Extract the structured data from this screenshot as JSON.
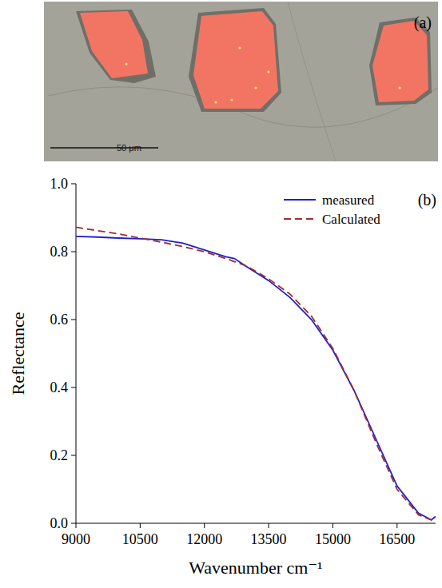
{
  "image": {
    "label": "(a)",
    "scale_bar": "50 μm"
  },
  "chart_data": {
    "type": "line",
    "annotations": [
      "(b)"
    ],
    "x_label": "Wavenumber cm⁻¹",
    "y_label": "Reflectance",
    "xlim": [
      9000,
      17400
    ],
    "ylim": [
      0,
      1
    ],
    "xticks": [
      9000,
      10500,
      12000,
      13500,
      15000,
      16500
    ],
    "yticks": [
      {
        "value": 0,
        "label": "0.0"
      },
      {
        "value": 0.2,
        "label": "0.2"
      },
      {
        "value": 0.4,
        "label": "0.4"
      },
      {
        "value": 0.6,
        "label": "0.6"
      },
      {
        "value": 0.8,
        "label": "0.8"
      },
      {
        "value": 1,
        "label": "1.0"
      }
    ],
    "legend": "upper right",
    "grid": false,
    "series": [
      {
        "name": "measured",
        "color": "#1f1fd0",
        "line_style": "solid",
        "x": [
          9000,
          9500,
          10000,
          10500,
          11000,
          11500,
          12000,
          12500,
          12700,
          13000,
          13500,
          14000,
          14500,
          15000,
          15500,
          16000,
          16500,
          17000,
          17300,
          17400
        ],
        "values": [
          0.845,
          0.843,
          0.84,
          0.838,
          0.835,
          0.825,
          0.805,
          0.785,
          0.78,
          0.755,
          0.715,
          0.665,
          0.6,
          0.51,
          0.39,
          0.25,
          0.11,
          0.03,
          0.01,
          0.02
        ]
      },
      {
        "name": "Calculated",
        "color": "#a52a2a",
        "line_style": "dashed",
        "x": [
          9000,
          9500,
          10000,
          10500,
          11000,
          11500,
          12000,
          12500,
          13000,
          13500,
          14000,
          14500,
          15000,
          15500,
          16000,
          16500,
          17000,
          17300,
          17400
        ],
        "values": [
          0.872,
          0.862,
          0.852,
          0.84,
          0.828,
          0.815,
          0.8,
          0.78,
          0.757,
          0.72,
          0.675,
          0.61,
          0.515,
          0.39,
          0.24,
          0.1,
          0.025,
          0.01,
          0.015
        ]
      }
    ]
  }
}
